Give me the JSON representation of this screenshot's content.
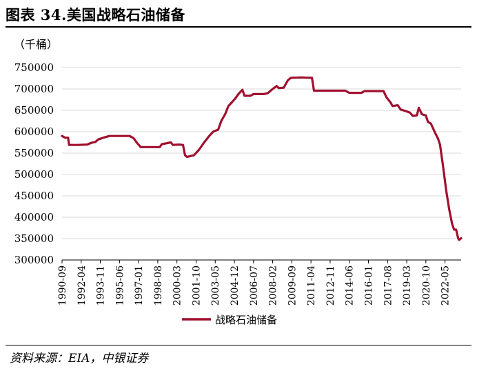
{
  "figure": {
    "title": "图表 34.美国战略石油储备",
    "source": "资料来源：EIA，中银证券"
  },
  "chart_data": {
    "type": "line",
    "unit_label": "（千桶）",
    "ylim": [
      300000,
      750000
    ],
    "yticks": [
      300000,
      350000,
      400000,
      450000,
      500000,
      550000,
      600000,
      650000,
      700000,
      750000
    ],
    "xlim": [
      "1990-09",
      "2023-09"
    ],
    "xticks": [
      "1990-09",
      "1992-04",
      "1993-11",
      "1995-06",
      "1997-01",
      "1998-08",
      "2000-03",
      "2001-10",
      "2003-05",
      "2004-12",
      "2006-07",
      "2008-02",
      "2009-09",
      "2011-04",
      "2012-11",
      "2014-06",
      "2016-01",
      "2017-08",
      "2019-03",
      "2020-10",
      "2022-05"
    ],
    "grid": "horizontal",
    "legend_position": "bottom",
    "colors": {
      "series": "#a0102e",
      "grid": "#d9d9d9"
    },
    "series": [
      {
        "name": "战略石油储备",
        "points": [
          [
            "1990-09",
            590000
          ],
          [
            "1990-12",
            586000
          ],
          [
            "1991-03",
            586000
          ],
          [
            "1991-04",
            569000
          ],
          [
            "1992-01",
            569000
          ],
          [
            "1992-10",
            570000
          ],
          [
            "1993-02",
            574000
          ],
          [
            "1993-06",
            576000
          ],
          [
            "1993-09",
            582000
          ],
          [
            "1994-02",
            586000
          ],
          [
            "1994-08",
            590000
          ],
          [
            "1996-04",
            590000
          ],
          [
            "1996-08",
            585000
          ],
          [
            "1996-11",
            575000
          ],
          [
            "1997-03",
            564000
          ],
          [
            "1998-10",
            564000
          ],
          [
            "1998-12",
            571000
          ],
          [
            "1999-05",
            573000
          ],
          [
            "1999-09",
            575000
          ],
          [
            "1999-11",
            569000
          ],
          [
            "2000-05",
            570000
          ],
          [
            "2000-09",
            569000
          ],
          [
            "2000-11",
            545000
          ],
          [
            "2001-01",
            541000
          ],
          [
            "2001-08",
            545000
          ],
          [
            "2002-01",
            558000
          ],
          [
            "2002-06",
            575000
          ],
          [
            "2002-11",
            590000
          ],
          [
            "2003-03",
            600000
          ],
          [
            "2003-08",
            605000
          ],
          [
            "2003-11",
            625000
          ],
          [
            "2004-03",
            642000
          ],
          [
            "2004-06",
            660000
          ],
          [
            "2004-10",
            670000
          ],
          [
            "2005-01",
            678000
          ],
          [
            "2005-04",
            688000
          ],
          [
            "2005-08",
            698000
          ],
          [
            "2005-10",
            684000
          ],
          [
            "2006-04",
            684000
          ],
          [
            "2006-07",
            688000
          ],
          [
            "2007-05",
            688000
          ],
          [
            "2007-09",
            690000
          ],
          [
            "2008-02",
            700000
          ],
          [
            "2008-06",
            707000
          ],
          [
            "2008-08",
            702000
          ],
          [
            "2009-01",
            703000
          ],
          [
            "2009-05",
            720000
          ],
          [
            "2009-08",
            726000
          ],
          [
            "2010-06",
            727000
          ],
          [
            "2011-05",
            726000
          ],
          [
            "2011-07",
            696000
          ],
          [
            "2014-02",
            696000
          ],
          [
            "2014-06",
            691000
          ],
          [
            "2015-06",
            691000
          ],
          [
            "2015-09",
            695000
          ],
          [
            "2017-04",
            695000
          ],
          [
            "2017-07",
            680000
          ],
          [
            "2017-11",
            668000
          ],
          [
            "2018-01",
            660000
          ],
          [
            "2018-06",
            662000
          ],
          [
            "2018-09",
            652000
          ],
          [
            "2019-01",
            649000
          ],
          [
            "2019-06",
            645000
          ],
          [
            "2019-09",
            637000
          ],
          [
            "2020-01",
            638000
          ],
          [
            "2020-03",
            656000
          ],
          [
            "2020-06",
            641000
          ],
          [
            "2020-10",
            638000
          ],
          [
            "2020-12",
            623000
          ],
          [
            "2021-03",
            619000
          ],
          [
            "2021-07",
            598000
          ],
          [
            "2021-10",
            584000
          ],
          [
            "2021-12",
            570000
          ],
          [
            "2022-03",
            520000
          ],
          [
            "2022-06",
            465000
          ],
          [
            "2022-09",
            420000
          ],
          [
            "2022-12",
            385000
          ],
          [
            "2023-02",
            371000
          ],
          [
            "2023-04",
            371000
          ],
          [
            "2023-06",
            351000
          ],
          [
            "2023-07",
            347000
          ],
          [
            "2023-09",
            351000
          ]
        ]
      }
    ]
  }
}
